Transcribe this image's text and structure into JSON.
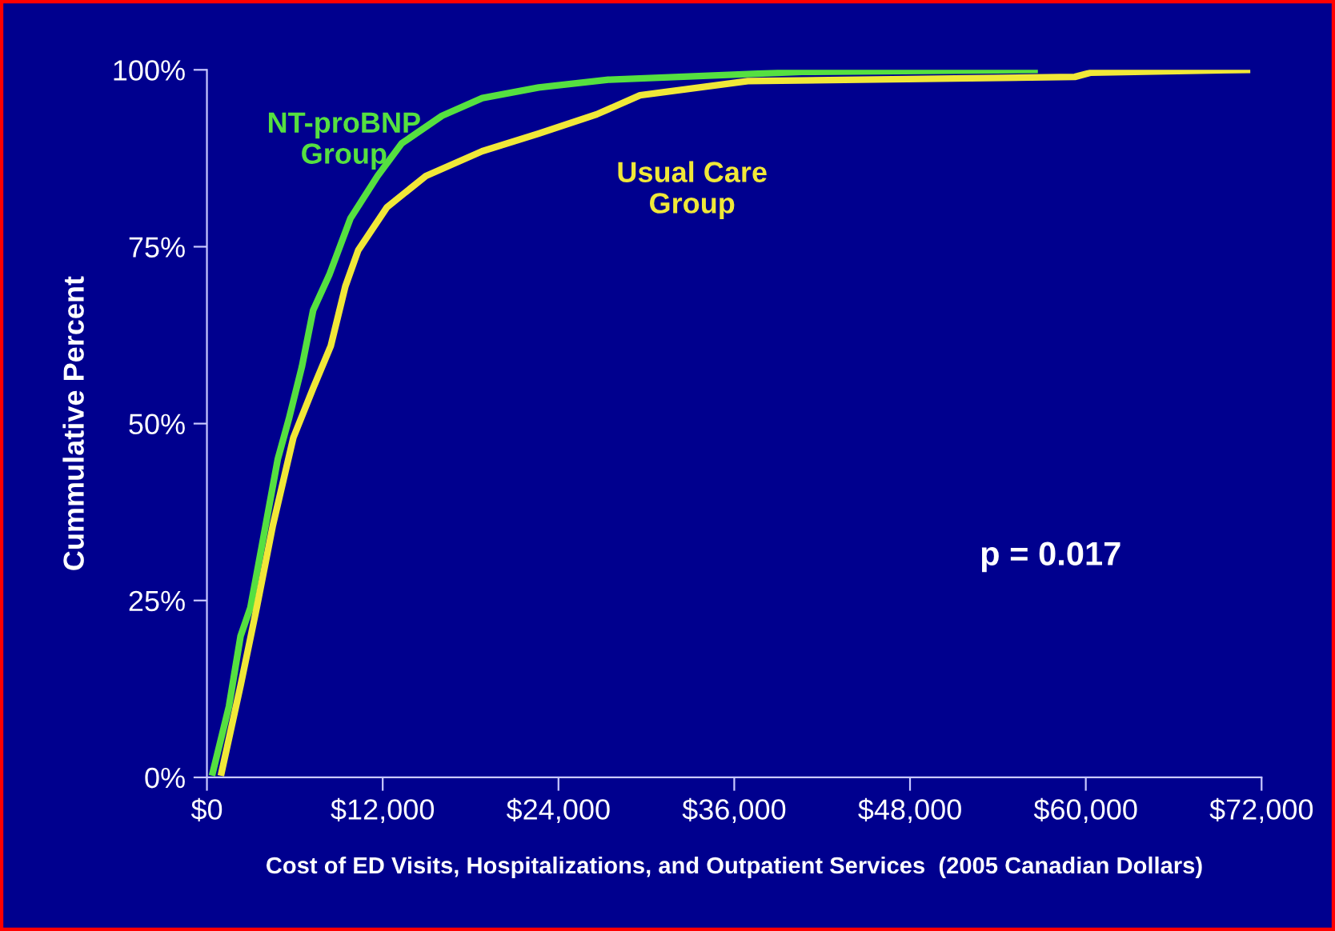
{
  "chart_data": {
    "type": "line",
    "xlabel": "Cost of ED Visits, Hospitalizations, and Outpatient Services  (2005 Canadian Dollars)",
    "ylabel": "Cummulative Percent",
    "annotations": [
      "p = 0.017"
    ],
    "xlim": [
      0,
      72000
    ],
    "ylim": [
      0,
      100
    ],
    "xticks": [
      {
        "value": 0,
        "label": "$0"
      },
      {
        "value": 12000,
        "label": "$12,000"
      },
      {
        "value": 24000,
        "label": "$24,000"
      },
      {
        "value": 36000,
        "label": "$36,000"
      },
      {
        "value": 48000,
        "label": "$48,000"
      },
      {
        "value": 60000,
        "label": "$60,000"
      },
      {
        "value": 72000,
        "label": "$72,000"
      }
    ],
    "yticks": [
      {
        "value": 0,
        "label": "0%"
      },
      {
        "value": 25,
        "label": "25%"
      },
      {
        "value": 50,
        "label": "50%"
      },
      {
        "value": 75,
        "label": "75%"
      },
      {
        "value": 100,
        "label": "100%"
      }
    ],
    "grid": false,
    "legend": false,
    "series": [
      {
        "name": "NT-proBNP\nGroup",
        "color": "#55e040",
        "x": [
          400,
          1500,
          2300,
          2970,
          3740,
          4840,
          5600,
          6480,
          7250,
          8350,
          9800,
          11650,
          13300,
          16050,
          18800,
          22650,
          27400,
          40600,
          56500
        ],
        "values": [
          0.7,
          10,
          20,
          24,
          32.6,
          45,
          50.7,
          58,
          66,
          71,
          79,
          85,
          89.6,
          93.5,
          96,
          97.5,
          98.6,
          99.7,
          100
        ]
      },
      {
        "name": "Usual Care\nGroup",
        "color": "#f0e838",
        "x": [
          1000,
          2300,
          3400,
          4500,
          5900,
          7250,
          8460,
          9450,
          10330,
          12300,
          14950,
          18800,
          22650,
          26600,
          29570,
          36930,
          59250,
          60350,
          71000
        ],
        "values": [
          0.7,
          13,
          24,
          35.6,
          48,
          55,
          61,
          69.4,
          74.5,
          80.6,
          85,
          88.5,
          91,
          93.7,
          96.4,
          98.4,
          99,
          99.6,
          100
        ]
      }
    ]
  }
}
